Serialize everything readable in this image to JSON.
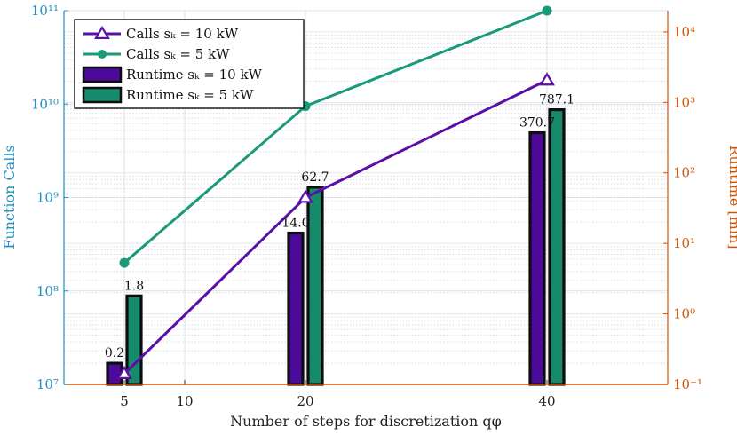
{
  "chart_data": {
    "type": "bar",
    "xlabel": "Number of steps for discretization qφ",
    "ylabel_left": "Function Calls",
    "ylabel_right": "Runtime [min]",
    "x_ticks": [
      5,
      10,
      20,
      40
    ],
    "xlim": [
      0,
      50
    ],
    "left_axis": {
      "scale": "log",
      "ylim": [
        10000000.0,
        100000000000.0
      ],
      "tick_labels": [
        "10⁷",
        "10⁸",
        "10⁹",
        "10¹⁰",
        "10¹¹"
      ],
      "tick_values": [
        10000000.0,
        100000000.0,
        1000000000.0,
        10000000000.0,
        100000000000.0
      ]
    },
    "right_axis": {
      "scale": "log",
      "ylim": [
        0.1,
        20000
      ],
      "tick_labels": [
        "10⁻¹",
        "10⁰",
        "10¹",
        "10²",
        "10³",
        "10⁴"
      ],
      "tick_values": [
        0.1,
        1,
        10,
        100,
        1000,
        10000
      ]
    },
    "grid": true,
    "legend_position": "top-left",
    "legend": [
      {
        "label": "Calls sₖ = 10 kW",
        "kind": "line-triangle",
        "color": "#5a0fa6"
      },
      {
        "label": "Calls sₖ = 5 kW",
        "kind": "line-circle",
        "color": "#1a9a7a"
      },
      {
        "label": "Runtime sₖ = 10 kW",
        "kind": "bar",
        "color": "#4b0a9c"
      },
      {
        "label": "Runtime sₖ = 5 kW",
        "kind": "bar",
        "color": "#178a6c"
      }
    ],
    "line_series": [
      {
        "name": "Calls sₖ = 10 kW",
        "axis": "left",
        "x": [
          5,
          20,
          40
        ],
        "values": [
          13000000,
          1000000000,
          18000000000
        ],
        "color": "#5a0fa6",
        "marker": "triangle"
      },
      {
        "name": "Calls sₖ = 5 kW",
        "axis": "left",
        "x": [
          5,
          20,
          40
        ],
        "values": [
          200000000,
          9500000000,
          100000000000
        ],
        "color": "#1a9a7a",
        "marker": "circle"
      }
    ],
    "bar_series": [
      {
        "name": "Runtime sₖ = 10 kW",
        "axis": "right",
        "x": [
          5,
          20,
          40
        ],
        "values": [
          0.2,
          14.0,
          370.7
        ],
        "labels": [
          "0.2",
          "14.0",
          "370.7"
        ],
        "color": "#4b0a9c",
        "offset": -1
      },
      {
        "name": "Runtime sₖ = 5 kW",
        "axis": "right",
        "x": [
          5,
          20,
          40
        ],
        "values": [
          1.8,
          62.7,
          787.1
        ],
        "labels": [
          "1.8",
          "62.7",
          "787.1"
        ],
        "color": "#178a6c",
        "offset": 1
      }
    ]
  }
}
